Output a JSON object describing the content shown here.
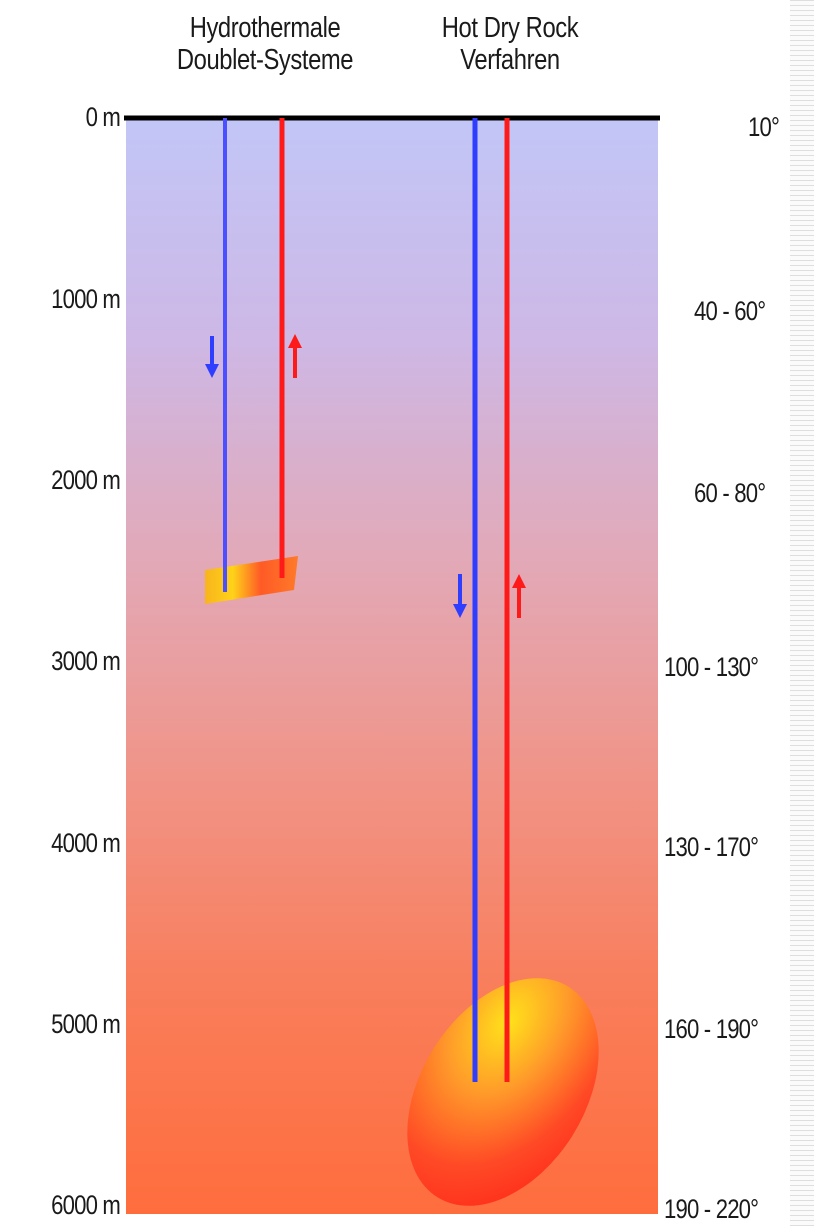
{
  "columns": {
    "hydrothermal": {
      "line1": "Hydrothermale",
      "line2": "Doublet-Systeme"
    },
    "hot_dry_rock": {
      "line1": "Hot Dry Rock",
      "line2": "Verfahren"
    }
  },
  "depth_labels": [
    "0 m",
    "1000 m",
    "2000 m",
    "3000 m",
    "4000 m",
    "5000 m",
    "6000 m"
  ],
  "temperature_labels": [
    "10°",
    "40 - 60°",
    "60 - 80°",
    "100 - 130°",
    "130 - 170°",
    "160 - 190°",
    "190 - 220°"
  ],
  "colors": {
    "injection": "#2f3dff",
    "production": "#ff1a1a",
    "surface": "#000000",
    "ground_top": "#c4c8f6",
    "ground_bottom": "#ff6d3d"
  }
}
